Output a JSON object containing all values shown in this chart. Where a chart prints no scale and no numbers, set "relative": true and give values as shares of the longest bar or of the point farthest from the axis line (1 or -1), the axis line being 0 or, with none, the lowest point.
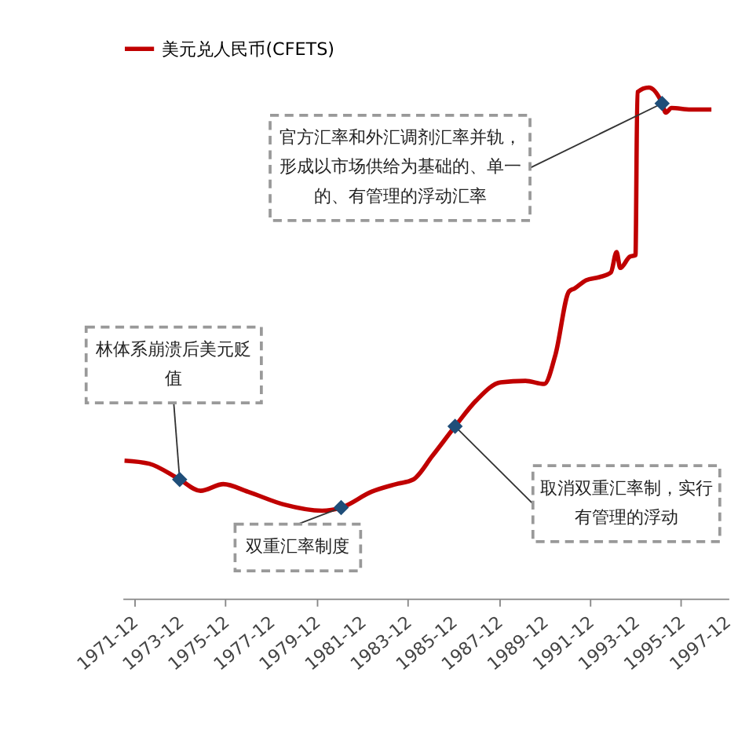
{
  "chart_data": {
    "type": "line",
    "relative": true,
    "x": [
      "1971-07",
      "1972-08",
      "1973-12",
      "1974-11",
      "1975-11",
      "1976-12",
      "1978-07",
      "1980-03",
      "1981-01",
      "1982-05",
      "1983-06",
      "1984-03",
      "1985-01",
      "1986-01",
      "1986-12",
      "1988-01",
      "1989-02",
      "1989-12",
      "1990-06",
      "1991-01",
      "1991-04",
      "1991-10",
      "1992-05",
      "1992-11",
      "1993-02",
      "1993-04",
      "1993-09",
      "1993-12",
      "1994-01",
      "1994-07",
      "1995-02",
      "1995-04",
      "1995-07",
      "1996-05",
      "1997-04"
    ],
    "series": [
      {
        "name": "美元兑人民币(CFETS)",
        "color": "#c00000",
        "values": [
          0.27,
          0.264,
          0.233,
          0.211,
          0.224,
          0.209,
          0.184,
          0.172,
          0.178,
          0.209,
          0.224,
          0.233,
          0.279,
          0.337,
          0.387,
          0.423,
          0.426,
          0.42,
          0.479,
          0.601,
          0.607,
          0.623,
          0.629,
          0.638,
          0.678,
          0.647,
          0.669,
          0.672,
          0.991,
          1.0,
          0.969,
          0.951,
          0.96,
          0.957,
          0.957
        ]
      }
    ],
    "xlim": [
      "1971-06",
      "1998-01"
    ],
    "xticks": [
      "1971-12",
      "1973-12",
      "1975-12",
      "1977-12",
      "1979-12",
      "1981-12",
      "1983-12",
      "1985-12",
      "1987-12",
      "1989-12",
      "1991-12",
      "1993-12",
      "1995-12",
      "1997-12"
    ],
    "annotations": [
      {
        "text": "林体系崩溃后美元贬值",
        "x": "1973-12",
        "y": 0.233
      },
      {
        "text": "双重汇率制度",
        "x": "1981-01",
        "y": 0.178
      },
      {
        "text": "取消双重汇率制，实行有管理的浮动",
        "x": "1986-01",
        "y": 0.337
      },
      {
        "text": "官方汇率和外汇调剂汇率并轨，形成以市场供给为基础的、单一的、有管理的浮动汇率",
        "x": "1995-02",
        "y": 0.969
      }
    ],
    "legend": "top",
    "grid": false,
    "marker": "none",
    "line_style": "solid"
  }
}
